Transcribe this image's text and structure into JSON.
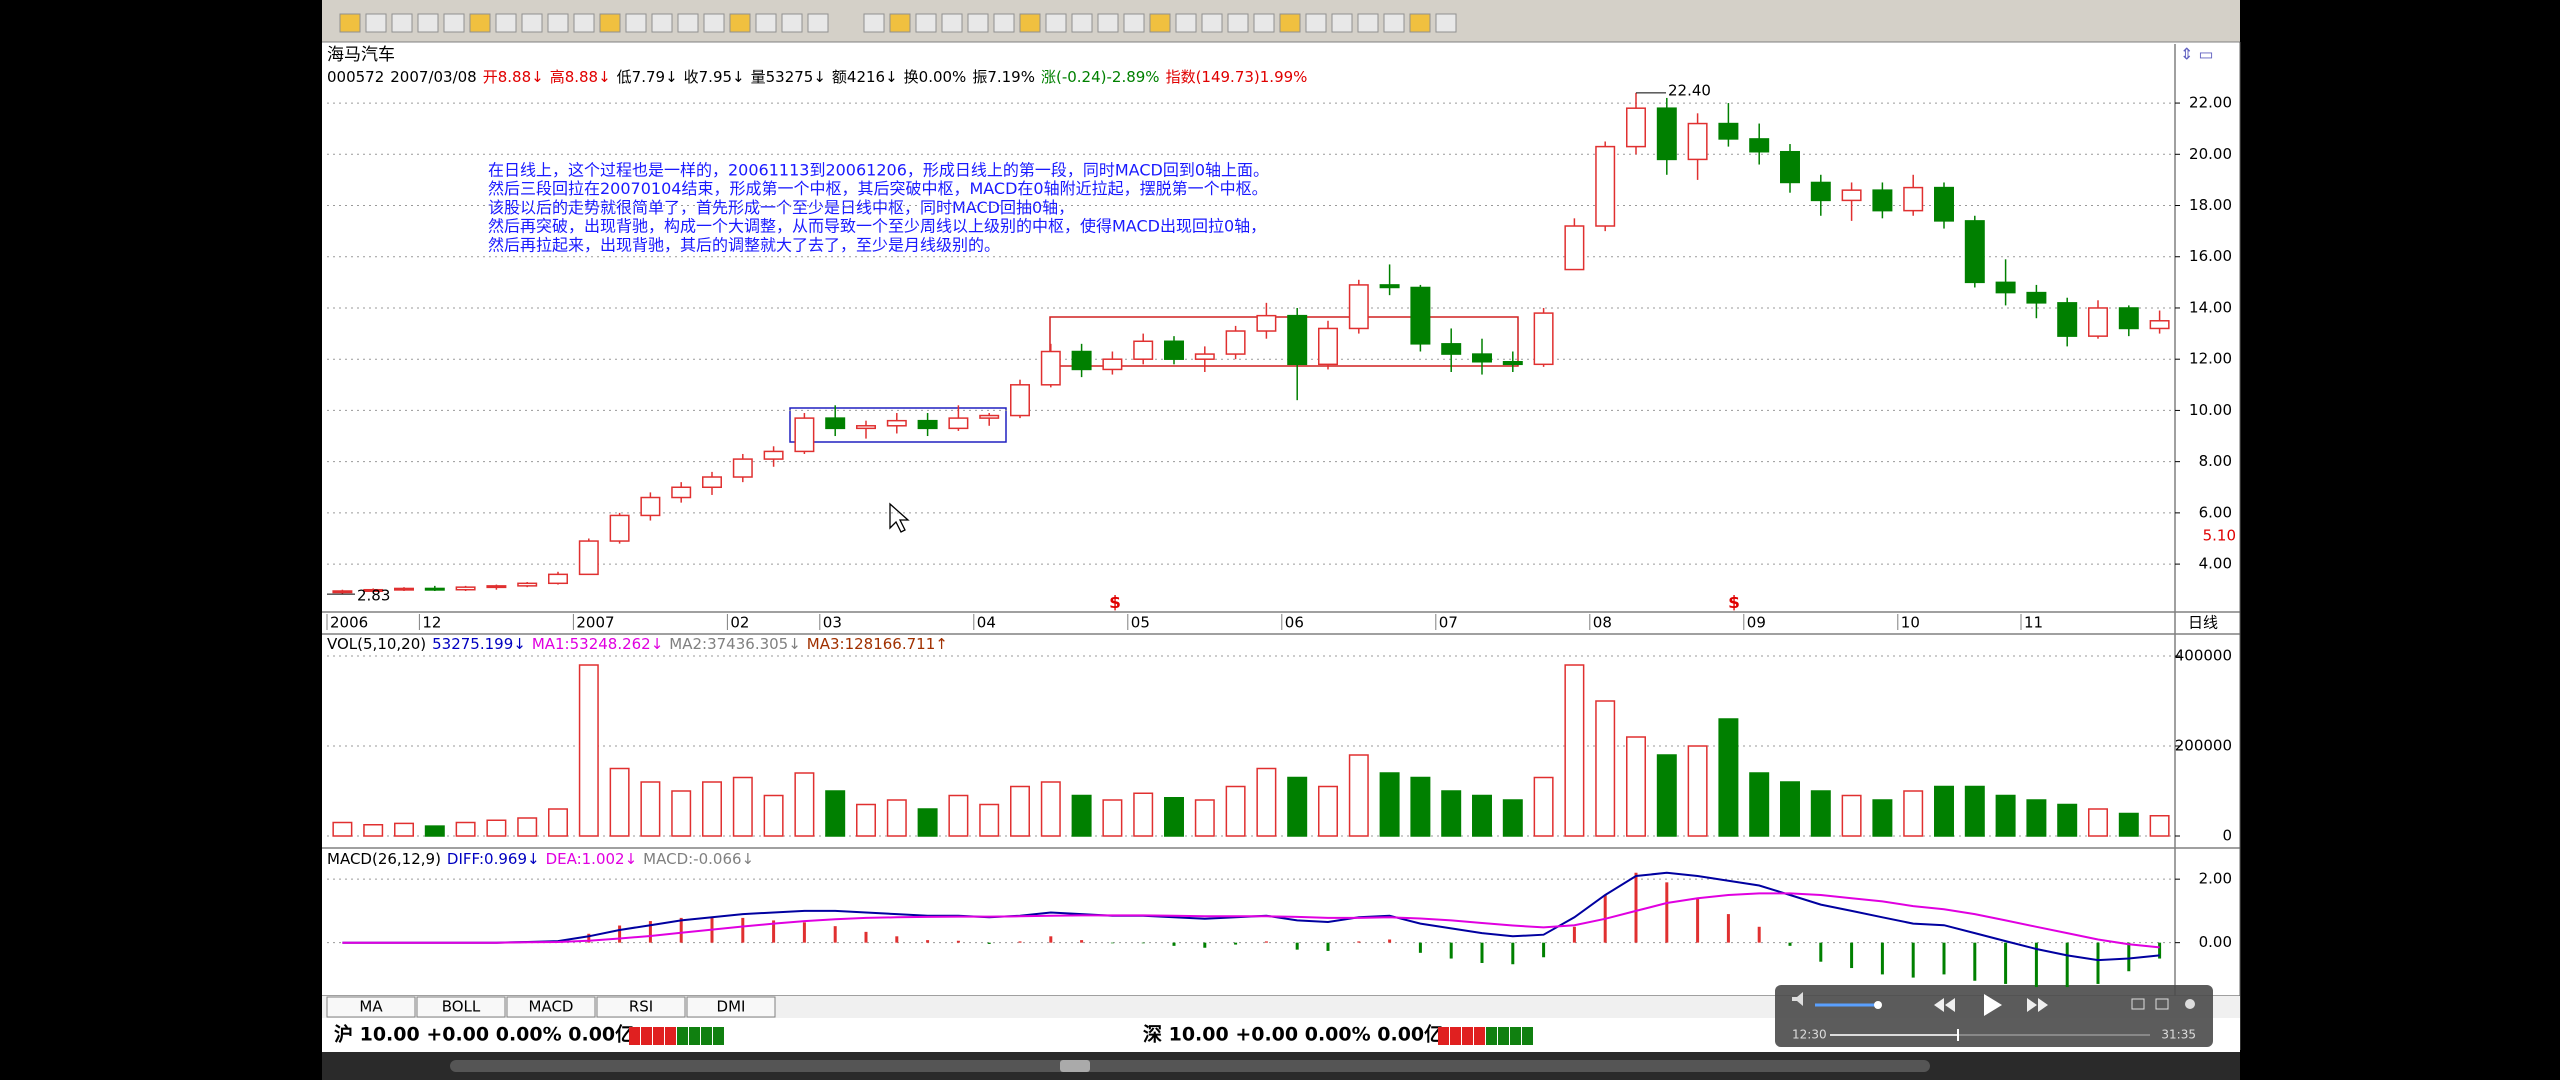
{
  "window": {
    "stock_name": "海马汽车",
    "quote": [
      {
        "text": "000572",
        "color": "#000000"
      },
      {
        "text": "2007/03/08",
        "color": "#000000"
      },
      {
        "text": "开8.88↓",
        "color": "#e00000"
      },
      {
        "text": "高8.88↓",
        "color": "#e00000"
      },
      {
        "text": "低7.79↓",
        "color": "#000000"
      },
      {
        "text": "收7.95↓",
        "color": "#000000"
      },
      {
        "text": "量53275↓",
        "color": "#000000"
      },
      {
        "text": "额4216↓",
        "color": "#000000"
      },
      {
        "text": "换0.00%",
        "color": "#000000"
      },
      {
        "text": "振7.19%",
        "color": "#000000"
      },
      {
        "text": "涨(-0.24)-2.89%",
        "color": "#008000"
      },
      {
        "text": "指数(149.73)1.99%",
        "color": "#e00000"
      }
    ],
    "annotation": [
      "在日线上，这个过程也是一样的，20061113到20061206，形成日线上的第一段，同时MACD回到0轴上面。",
      "然后三段回拉在20070104结束，形成第一个中枢，其后突破中枢，MACD在0轴附近拉起，摆脱第一个中枢。",
      "该股以后的走势就很简单了，首先形成一个至少是日线中枢，同时MACD回抽0轴，",
      "然后再突破，出现背驰，构成一个大调整，从而导致一个至少周线以上级别的中枢，使得MACD出现回拉0轴，",
      "然后再拉起来，出现背驰，其后的调整就大了去了，至少是月线级别的。"
    ],
    "period_label": "日线",
    "event_markers": [
      "$",
      "$"
    ],
    "volume_header": [
      {
        "text": "VOL(5,10,20)",
        "color": "#000000"
      },
      {
        "text": "53275.199↓",
        "color": "#0000c0"
      },
      {
        "text": "MA1:53248.262↓",
        "color": "#e000e0"
      },
      {
        "text": "MA2:37436.305↓",
        "color": "#808080"
      },
      {
        "text": "MA3:128166.711↑",
        "color": "#a03000"
      }
    ],
    "macd_header": [
      {
        "text": "MACD(26,12,9)",
        "color": "#000000"
      },
      {
        "text": "DIFF:0.969↓",
        "color": "#0000c0"
      },
      {
        "text": "DEA:1.002↓",
        "color": "#e000e0"
      },
      {
        "text": "MACD:-0.066↓",
        "color": "#808080"
      }
    ],
    "tabs": [
      "MA",
      "BOLL",
      "MACD",
      "RSI",
      "DMI"
    ],
    "status": [
      "沪 10.00 +0.00 0.00% 0.00亿",
      "深 10.00 +0.00 0.00% 0.00亿"
    ],
    "player": {
      "elapsed": "12:30",
      "total": "31:35"
    }
  },
  "chart_data": [
    {
      "type": "candlestick",
      "categories": [
        "2006",
        null,
        null,
        "12",
        null,
        null,
        null,
        null,
        "2007",
        null,
        null,
        null,
        null,
        "02",
        null,
        null,
        "03",
        null,
        null,
        null,
        null,
        "04",
        null,
        null,
        null,
        null,
        "05",
        null,
        null,
        null,
        null,
        "06",
        null,
        null,
        null,
        null,
        "07",
        null,
        null,
        null,
        null,
        "08",
        null,
        null,
        null,
        null,
        "09",
        null,
        null,
        null,
        null,
        "10",
        null,
        null,
        null,
        "11",
        null,
        null,
        null,
        null,
        null
      ],
      "ohlc": [
        [
          2.9,
          3.0,
          2.83,
          2.95
        ],
        [
          2.95,
          3.05,
          2.9,
          3.0
        ],
        [
          3.0,
          3.1,
          2.95,
          3.05
        ],
        [
          3.05,
          3.15,
          2.95,
          3.0
        ],
        [
          3.0,
          3.15,
          2.95,
          3.1
        ],
        [
          3.1,
          3.2,
          3.0,
          3.15
        ],
        [
          3.15,
          3.3,
          3.1,
          3.25
        ],
        [
          3.25,
          3.7,
          3.2,
          3.6
        ],
        [
          3.6,
          5.0,
          3.6,
          4.9
        ],
        [
          4.9,
          6.0,
          4.8,
          5.9
        ],
        [
          5.9,
          6.8,
          5.7,
          6.6
        ],
        [
          6.6,
          7.2,
          6.4,
          7.0
        ],
        [
          7.0,
          7.6,
          6.7,
          7.4
        ],
        [
          7.4,
          8.3,
          7.2,
          8.1
        ],
        [
          8.1,
          8.6,
          7.8,
          8.4
        ],
        [
          8.4,
          9.9,
          8.3,
          9.7
        ],
        [
          9.7,
          10.2,
          9.0,
          9.3
        ],
        [
          9.3,
          9.6,
          8.9,
          9.4
        ],
        [
          9.4,
          9.9,
          9.1,
          9.6
        ],
        [
          9.6,
          9.9,
          9.0,
          9.3
        ],
        [
          9.3,
          10.2,
          9.2,
          9.7
        ],
        [
          9.7,
          9.9,
          9.4,
          9.8
        ],
        [
          9.8,
          11.2,
          9.7,
          11.0
        ],
        [
          11.0,
          12.6,
          10.9,
          12.3
        ],
        [
          12.3,
          12.6,
          11.3,
          11.6
        ],
        [
          11.6,
          12.3,
          11.4,
          12.0
        ],
        [
          12.0,
          13.0,
          11.8,
          12.7
        ],
        [
          12.7,
          12.9,
          11.8,
          12.0
        ],
        [
          12.0,
          12.5,
          11.5,
          12.2
        ],
        [
          12.2,
          13.3,
          12.0,
          13.1
        ],
        [
          13.1,
          14.2,
          12.8,
          13.7
        ],
        [
          13.7,
          14.0,
          10.4,
          11.8
        ],
        [
          11.8,
          13.5,
          11.6,
          13.2
        ],
        [
          13.2,
          15.1,
          13.0,
          14.9
        ],
        [
          14.9,
          15.7,
          14.5,
          14.8
        ],
        [
          14.8,
          14.9,
          12.3,
          12.6
        ],
        [
          12.6,
          13.2,
          11.5,
          12.2
        ],
        [
          12.2,
          12.8,
          11.4,
          11.9
        ],
        [
          11.9,
          12.3,
          11.5,
          11.8
        ],
        [
          11.8,
          14.0,
          11.7,
          13.8
        ],
        [
          15.5,
          17.5,
          15.5,
          17.2
        ],
        [
          17.2,
          20.5,
          17.0,
          20.3
        ],
        [
          20.3,
          22.4,
          20.0,
          21.8
        ],
        [
          21.8,
          22.2,
          19.2,
          19.8
        ],
        [
          19.8,
          21.6,
          19.0,
          21.2
        ],
        [
          21.2,
          22.0,
          20.3,
          20.6
        ],
        [
          20.6,
          21.2,
          19.6,
          20.1
        ],
        [
          20.1,
          20.4,
          18.5,
          18.9
        ],
        [
          18.9,
          19.2,
          17.6,
          18.2
        ],
        [
          18.2,
          18.9,
          17.4,
          18.6
        ],
        [
          18.6,
          18.9,
          17.5,
          17.8
        ],
        [
          17.8,
          19.2,
          17.6,
          18.7
        ],
        [
          18.7,
          18.9,
          17.1,
          17.4
        ],
        [
          17.4,
          17.6,
          14.8,
          15.0
        ],
        [
          15.0,
          15.9,
          14.1,
          14.6
        ],
        [
          14.6,
          14.9,
          13.6,
          14.2
        ],
        [
          14.2,
          14.4,
          12.5,
          12.9
        ],
        [
          12.9,
          14.3,
          12.8,
          14.0
        ],
        [
          14.0,
          14.1,
          12.9,
          13.2
        ],
        [
          13.2,
          13.9,
          13.0,
          13.5
        ]
      ],
      "up_color": "#e03030",
      "down_color": "#008000",
      "ylim": [
        2.13,
        22.51
      ],
      "yticks": [
        {
          "value": 4,
          "label": "4.00"
        },
        {
          "value": 6,
          "label": "6.00"
        },
        {
          "value": 8,
          "label": "8.00"
        },
        {
          "value": 10,
          "label": "10.00"
        },
        {
          "value": 12,
          "label": "12.00"
        },
        {
          "value": 14,
          "label": "14.00"
        },
        {
          "value": 16,
          "label": "16.00"
        },
        {
          "value": 18,
          "label": "18.00"
        },
        {
          "value": 20,
          "label": "20.00"
        },
        {
          "value": 22,
          "label": "22.00"
        }
      ],
      "grid": true,
      "peak_label": {
        "value": 22.4,
        "label": "22.40"
      },
      "low_label": {
        "value": 2.83,
        "label": "2.83"
      },
      "price_marker": {
        "value": 5.1,
        "label": "5.10"
      }
    },
    {
      "type": "bar",
      "values": [
        30000,
        25000,
        28000,
        22000,
        30000,
        35000,
        40000,
        60000,
        380000,
        150000,
        120000,
        100000,
        120000,
        130000,
        90000,
        140000,
        100000,
        70000,
        80000,
        60000,
        90000,
        70000,
        110000,
        120000,
        90000,
        80000,
        95000,
        85000,
        80000,
        110000,
        150000,
        130000,
        110000,
        180000,
        140000,
        130000,
        100000,
        90000,
        80000,
        130000,
        380000,
        300000,
        220000,
        180000,
        200000,
        260000,
        140000,
        120000,
        100000,
        90000,
        80000,
        100000,
        110000,
        110000,
        90000,
        80000,
        70000,
        60000,
        50000,
        45000
      ],
      "ylim": [
        0,
        448900
      ],
      "yticks": [
        0,
        200000,
        400000
      ],
      "grid": true
    },
    {
      "type": "macd",
      "diff": [
        0,
        0,
        0,
        0,
        0,
        0,
        0.02,
        0.05,
        0.2,
        0.4,
        0.55,
        0.7,
        0.8,
        0.9,
        0.95,
        1.0,
        1.0,
        0.95,
        0.9,
        0.85,
        0.85,
        0.8,
        0.85,
        0.95,
        0.9,
        0.85,
        0.85,
        0.8,
        0.75,
        0.8,
        0.85,
        0.7,
        0.65,
        0.8,
        0.85,
        0.6,
        0.45,
        0.3,
        0.2,
        0.25,
        0.8,
        1.5,
        2.1,
        2.2,
        2.1,
        1.95,
        1.8,
        1.5,
        1.2,
        1.0,
        0.8,
        0.6,
        0.55,
        0.3,
        0.05,
        -0.2,
        -0.4,
        -0.55,
        -0.5,
        -0.4
      ],
      "dea": [
        0,
        0,
        0,
        0,
        0,
        0,
        0.01,
        0.02,
        0.06,
        0.13,
        0.21,
        0.31,
        0.41,
        0.51,
        0.6,
        0.68,
        0.74,
        0.78,
        0.8,
        0.81,
        0.82,
        0.82,
        0.83,
        0.85,
        0.86,
        0.86,
        0.86,
        0.85,
        0.83,
        0.83,
        0.83,
        0.81,
        0.78,
        0.78,
        0.8,
        0.76,
        0.7,
        0.62,
        0.54,
        0.48,
        0.55,
        0.75,
        1.0,
        1.25,
        1.4,
        1.5,
        1.55,
        1.55,
        1.5,
        1.4,
        1.3,
        1.15,
        1.05,
        0.9,
        0.7,
        0.5,
        0.3,
        0.1,
        -0.05,
        -0.15
      ],
      "macd": [
        0,
        0,
        0,
        0,
        0,
        0,
        0.02,
        0.06,
        0.28,
        0.54,
        0.68,
        0.78,
        0.78,
        0.78,
        0.7,
        0.64,
        0.52,
        0.34,
        0.2,
        0.08,
        0.06,
        -0.04,
        0.04,
        0.2,
        0.08,
        -0.02,
        -0.02,
        -0.1,
        -0.16,
        -0.06,
        0.04,
        -0.22,
        -0.26,
        0.04,
        0.1,
        -0.32,
        -0.5,
        -0.64,
        -0.68,
        -0.46,
        0.5,
        1.5,
        2.2,
        1.9,
        1.4,
        0.9,
        0.5,
        -0.1,
        -0.6,
        -0.8,
        -1.0,
        -1.1,
        -1.0,
        -1.2,
        -1.3,
        -1.4,
        -1.4,
        -1.3,
        -0.9,
        -0.5
      ],
      "diff_color": "#0000a0",
      "dea_color": "#e000e0",
      "up_color": "#e03030",
      "down_color": "#008000",
      "ylim": [
        -1.68,
        2.95
      ],
      "yticks": [
        {
          "value": 0,
          "label": "0.00"
        },
        {
          "value": 2,
          "label": "2.00"
        }
      ],
      "grid": true
    }
  ]
}
